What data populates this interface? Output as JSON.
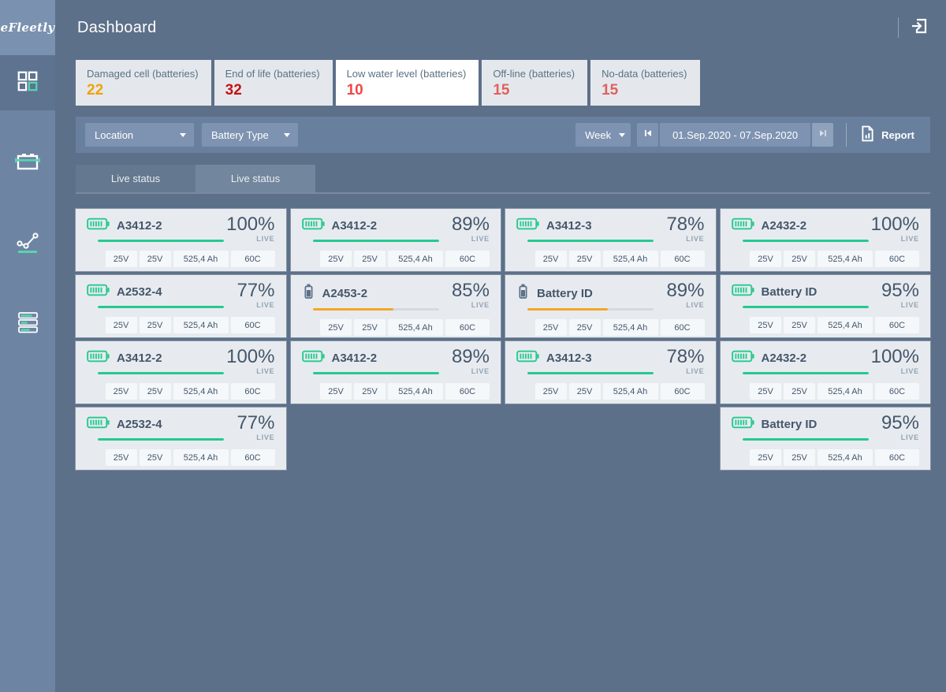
{
  "app": {
    "logo": "eFleetly",
    "title": "Dashboard"
  },
  "sidebar": {
    "items": [
      {
        "name": "dashboard",
        "active": true
      },
      {
        "name": "batteries",
        "active": false
      },
      {
        "name": "analytics",
        "active": false
      },
      {
        "name": "reports",
        "active": false
      }
    ]
  },
  "stats": [
    {
      "label": "Damaged cell (batteries)",
      "value": "22",
      "value_color": "#f0a30c",
      "bg": "#e4e8ec"
    },
    {
      "label": "End of life (batteries)",
      "value": "32",
      "value_color": "#c41414",
      "bg": "#e4e8ec"
    },
    {
      "label": "Low water level (batteries)",
      "value": "10",
      "value_color": "#ef4848",
      "bg": "#ffffff"
    },
    {
      "label": "Off-line (batteries)",
      "value": "15",
      "value_color": "#e25f5f",
      "bg": "#e4e8ec"
    },
    {
      "label": "No-data (batteries)",
      "value": "15",
      "value_color": "#e25f5f",
      "bg": "#e4e8ec"
    }
  ],
  "filters": {
    "location_label": "Location",
    "battery_type_label": "Battery Type",
    "period_label": "Week",
    "date_range": "01.Sep.2020 - 07.Sep.2020",
    "report_label": "Report"
  },
  "tabs": [
    {
      "label": "Live status",
      "active": false
    },
    {
      "label": "Live status",
      "active": true
    }
  ],
  "batteries": [
    {
      "id": "A3412-2",
      "percent": "100%",
      "live": "LIVE",
      "icon": "horizontal",
      "bar_fill": 100,
      "bar_color": "#26c98f",
      "specs": [
        "25V",
        "25V",
        "525,4 Ah",
        "60C"
      ]
    },
    {
      "id": "A3412-2",
      "percent": "89%",
      "live": "LIVE",
      "icon": "horizontal",
      "bar_fill": 100,
      "bar_color": "#26c98f",
      "specs": [
        "25V",
        "25V",
        "525,4 Ah",
        "60C"
      ]
    },
    {
      "id": "A3412-3",
      "percent": "78%",
      "live": "LIVE",
      "icon": "horizontal",
      "bar_fill": 100,
      "bar_color": "#26c98f",
      "specs": [
        "25V",
        "25V",
        "525,4 Ah",
        "60C"
      ]
    },
    {
      "id": "A2432-2",
      "percent": "100%",
      "live": "LIVE",
      "icon": "horizontal",
      "bar_fill": 100,
      "bar_color": "#26c98f",
      "specs": [
        "25V",
        "25V",
        "525,4 Ah",
        "60C"
      ]
    },
    {
      "id": "A2532-4",
      "percent": "77%",
      "live": "LIVE",
      "icon": "horizontal",
      "bar_fill": 100,
      "bar_color": "#26c98f",
      "specs": [
        "25V",
        "25V",
        "525,4 Ah",
        "60C"
      ]
    },
    {
      "id": "A2453-2",
      "percent": "85%",
      "live": "LIVE",
      "icon": "vertical",
      "bar_fill": 64,
      "bar_color": "#f5a623",
      "specs": [
        "25V",
        "25V",
        "525,4 Ah",
        "60C"
      ]
    },
    {
      "id": "Battery ID",
      "percent": "89%",
      "live": "LIVE",
      "icon": "vertical",
      "bar_fill": 64,
      "bar_color": "#f5a623",
      "specs": [
        "25V",
        "25V",
        "525,4 Ah",
        "60C"
      ]
    },
    {
      "id": "Battery ID",
      "percent": "95%",
      "live": "LIVE",
      "icon": "horizontal",
      "bar_fill": 100,
      "bar_color": "#26c98f",
      "specs": [
        "25V",
        "25V",
        "525,4 Ah",
        "60C"
      ]
    },
    {
      "id": "A3412-2",
      "percent": "100%",
      "live": "LIVE",
      "icon": "horizontal",
      "bar_fill": 100,
      "bar_color": "#26c98f",
      "specs": [
        "25V",
        "25V",
        "525,4 Ah",
        "60C"
      ]
    },
    {
      "id": "A3412-2",
      "percent": "89%",
      "live": "LIVE",
      "icon": "horizontal",
      "bar_fill": 100,
      "bar_color": "#26c98f",
      "specs": [
        "25V",
        "25V",
        "525,4 Ah",
        "60C"
      ]
    },
    {
      "id": "A3412-3",
      "percent": "78%",
      "live": "LIVE",
      "icon": "horizontal",
      "bar_fill": 100,
      "bar_color": "#26c98f",
      "specs": [
        "25V",
        "25V",
        "525,4 Ah",
        "60C"
      ]
    },
    {
      "id": "A2432-2",
      "percent": "100%",
      "live": "LIVE",
      "icon": "horizontal",
      "bar_fill": 100,
      "bar_color": "#26c98f",
      "specs": [
        "25V",
        "25V",
        "525,4 Ah",
        "60C"
      ]
    },
    {
      "id": "A2532-4",
      "percent": "77%",
      "live": "LIVE",
      "icon": "horizontal",
      "bar_fill": 100,
      "bar_color": "#26c98f",
      "specs": [
        "25V",
        "25V",
        "525,4 Ah",
        "60C"
      ],
      "col": 1
    },
    {
      "id": "Battery ID",
      "percent": "95%",
      "live": "LIVE",
      "icon": "horizontal",
      "bar_fill": 100,
      "bar_color": "#26c98f",
      "specs": [
        "25V",
        "25V",
        "525,4 Ah",
        "60C"
      ],
      "col": 4
    }
  ],
  "colors": {
    "green": "#26c98f",
    "orange": "#f5a623"
  }
}
